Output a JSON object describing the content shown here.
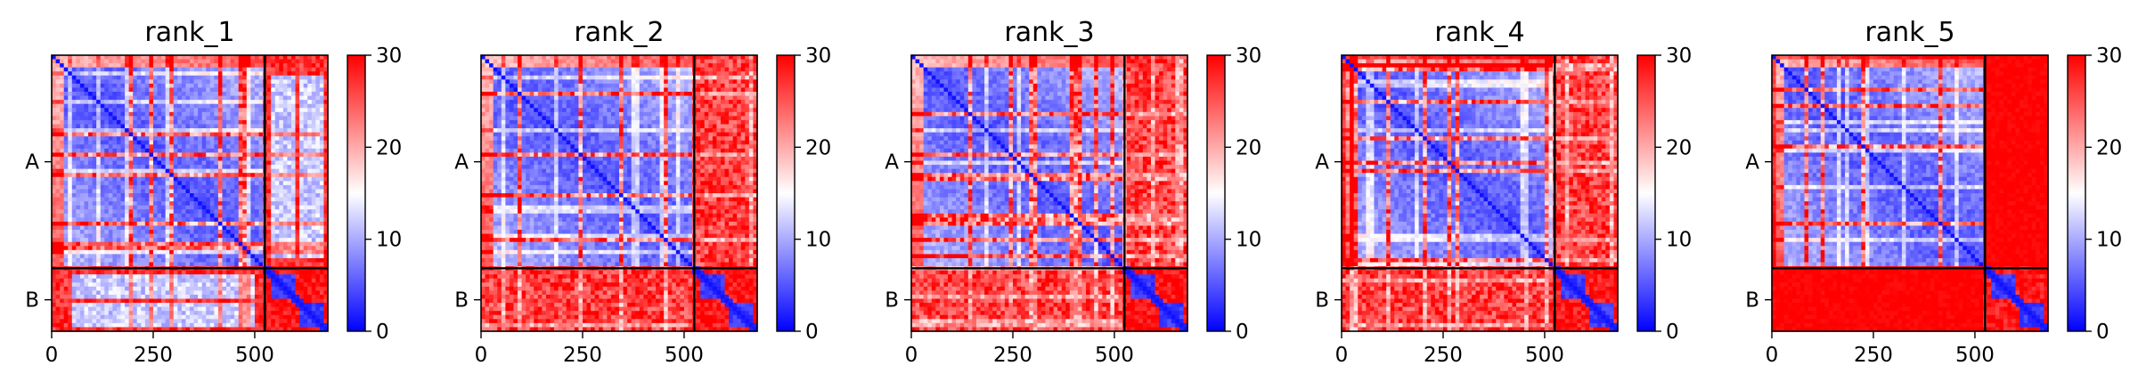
{
  "chart_data": [
    {
      "type": "heatmap",
      "title": "rank_1",
      "x_ticks": [
        "0",
        "250",
        "500"
      ],
      "y_ticks": [
        "A",
        "B"
      ],
      "chain_lengths": [
        525,
        155
      ],
      "colorbar_ticks": [
        "0",
        "10",
        "20",
        "30"
      ],
      "colorbar_range": [
        0,
        30
      ],
      "colormap": [
        "#0000ff",
        "#ffffff",
        "#ff0000"
      ],
      "pattern": {
        "interchain": "structured",
        "intra_a": "mostly-blue",
        "intra_b": "blue-blocks"
      }
    },
    {
      "type": "heatmap",
      "title": "rank_2",
      "x_ticks": [
        "0",
        "250",
        "500"
      ],
      "y_ticks": [
        "A",
        "B"
      ],
      "chain_lengths": [
        525,
        155
      ],
      "colorbar_ticks": [
        "0",
        "10",
        "20",
        "30"
      ],
      "colorbar_range": [
        0,
        30
      ],
      "colormap": [
        "#0000ff",
        "#ffffff",
        "#ff0000"
      ],
      "pattern": {
        "interchain": "mostly-red",
        "intra_a": "mostly-blue",
        "intra_b": "blue-blocks"
      }
    },
    {
      "type": "heatmap",
      "title": "rank_3",
      "x_ticks": [
        "0",
        "250",
        "500"
      ],
      "y_ticks": [
        "A",
        "B"
      ],
      "chain_lengths": [
        525,
        155
      ],
      "colorbar_ticks": [
        "0",
        "10",
        "20",
        "30"
      ],
      "colorbar_range": [
        0,
        30
      ],
      "colormap": [
        "#0000ff",
        "#ffffff",
        "#ff0000"
      ],
      "pattern": {
        "interchain": "mostly-red",
        "intra_a": "mostly-blue",
        "intra_b": "blue-blocks"
      }
    },
    {
      "type": "heatmap",
      "title": "rank_4",
      "x_ticks": [
        "0",
        "250",
        "500"
      ],
      "y_ticks": [
        "A",
        "B"
      ],
      "chain_lengths": [
        525,
        155
      ],
      "colorbar_ticks": [
        "0",
        "10",
        "20",
        "30"
      ],
      "colorbar_range": [
        0,
        30
      ],
      "colormap": [
        "#0000ff",
        "#ffffff",
        "#ff0000"
      ],
      "pattern": {
        "interchain": "mostly-red",
        "intra_a": "mostly-blue",
        "intra_b": "blue-blocks"
      }
    },
    {
      "type": "heatmap",
      "title": "rank_5",
      "x_ticks": [
        "0",
        "250",
        "500"
      ],
      "y_ticks": [
        "A",
        "B"
      ],
      "chain_lengths": [
        525,
        155
      ],
      "colorbar_ticks": [
        "0",
        "10",
        "20",
        "30"
      ],
      "colorbar_range": [
        0,
        30
      ],
      "colormap": [
        "#0000ff",
        "#ffffff",
        "#ff0000"
      ],
      "pattern": {
        "interchain": "solid-red",
        "intra_a": "mostly-blue",
        "intra_b": "blue-blocks"
      }
    }
  ]
}
